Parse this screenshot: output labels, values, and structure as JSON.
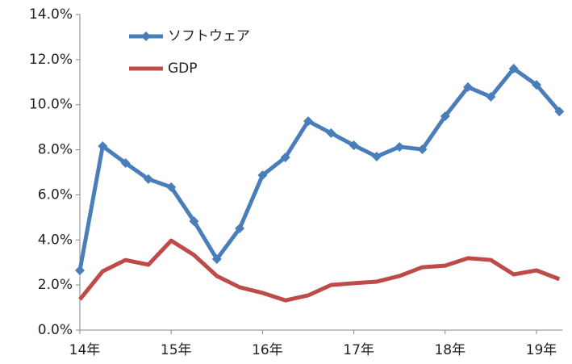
{
  "chart_data": {
    "type": "line",
    "categories": [
      "14年",
      null,
      null,
      null,
      "15年",
      null,
      null,
      null,
      "16年",
      null,
      null,
      null,
      "17年",
      null,
      null,
      null,
      "18年",
      null,
      null,
      null,
      "19年",
      null
    ],
    "series": [
      {
        "name": "ソフトウェア",
        "color": "#4a7ebb",
        "marker": "diamond",
        "values": [
          2.65,
          8.16,
          7.41,
          6.7,
          6.34,
          4.83,
          3.15,
          4.51,
          6.87,
          7.66,
          9.27,
          8.74,
          8.2,
          7.7,
          8.13,
          8.02,
          9.49,
          10.78,
          10.35,
          11.6,
          10.88,
          9.7
        ]
      },
      {
        "name": "GDP",
        "color": "#be4b48",
        "values": [
          1.36,
          2.61,
          3.11,
          2.9,
          3.97,
          3.33,
          2.4,
          1.9,
          1.65,
          1.32,
          1.54,
          2.0,
          2.08,
          2.15,
          2.4,
          2.79,
          2.86,
          3.19,
          3.11,
          2.47,
          2.65,
          2.26
        ]
      }
    ],
    "ylim": [
      0,
      14
    ],
    "yticks": [
      {
        "value": 0,
        "label": "0.0%"
      },
      {
        "value": 2,
        "label": "2.0%"
      },
      {
        "value": 4,
        "label": "4.0%"
      },
      {
        "value": 6,
        "label": "6.0%"
      },
      {
        "value": 8,
        "label": "8.0%"
      },
      {
        "value": 10,
        "label": "10.0%"
      },
      {
        "value": 12,
        "label": "12.0%"
      },
      {
        "value": 14,
        "label": "14.0%"
      }
    ],
    "legend": "upper-left"
  }
}
